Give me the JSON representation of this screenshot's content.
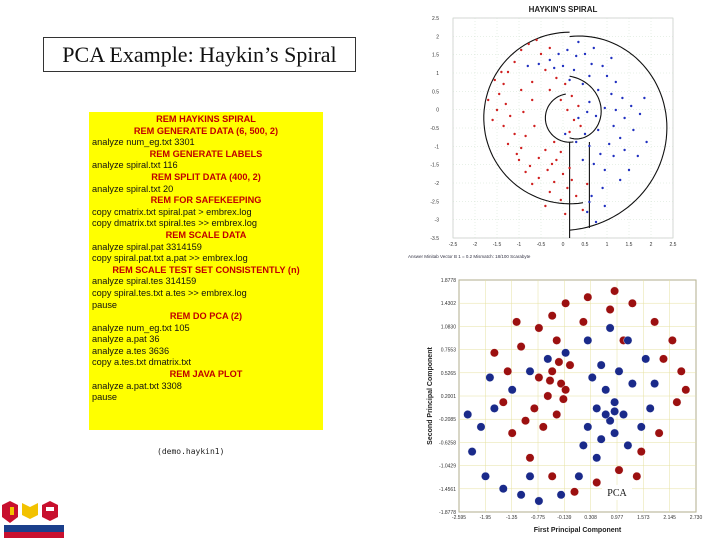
{
  "slide": {
    "title": "PCA Example: Haykin’s Spiral",
    "caption": "(demo.haykin1)"
  },
  "code_lines": [
    {
      "text": "REM HAYKINS SPIRAL",
      "rem": true
    },
    {
      "text": "REM GENERATE DATA (6, 500, 2)",
      "rem": true
    },
    {
      "text": "analyze num_eg.txt 3301",
      "rem": false
    },
    {
      "text": "REM GENERATE LABELS",
      "rem": true
    },
    {
      "text": "analyze spiral.txt 116",
      "rem": false
    },
    {
      "text": "REM SPLIT DATA (400, 2)",
      "rem": true
    },
    {
      "text": "analyze spiral.txt 20",
      "rem": false
    },
    {
      "text": "REM FOR SAFEKEEPING",
      "rem": true
    },
    {
      "text": "copy cmatrix.txt spiral.pat > embrex.log",
      "rem": false
    },
    {
      "text": "copy dmatrix.txt spiral.tes >> embrex.log",
      "rem": false
    },
    {
      "text": "REM SCALE DATA",
      "rem": true
    },
    {
      "text": "analyze spiral.pat 3314159",
      "rem": false
    },
    {
      "text": "copy spiral.pat.txt a.pat >> embrex.log",
      "rem": false
    },
    {
      "text": "REM SCALE TEST SET CONSISTENTLY (n)",
      "rem": true
    },
    {
      "text": "analyze spiral.tes 314159",
      "rem": false
    },
    {
      "text": "copy spiral.tes.txt a.tes >> embrex.log",
      "rem": false
    },
    {
      "text": "pause",
      "rem": false
    },
    {
      "text": "REM DO PCA (2)",
      "rem": true
    },
    {
      "text": "analyze num_eg.txt 105",
      "rem": false
    },
    {
      "text": "analyze a.pat 36",
      "rem": false
    },
    {
      "text": "analyze a.tes 3636",
      "rem": false
    },
    {
      "text": "copy a.tes.txt dmatrix.txt",
      "rem": false
    },
    {
      "text": "REM JAVA PLOT",
      "rem": true
    },
    {
      "text": "analyze a.pat.txt 3308",
      "rem": false
    },
    {
      "text": "pause",
      "rem": false
    }
  ],
  "chart_data": [
    {
      "type": "scatter",
      "title": "HAYKIN'S SPIRAL",
      "xlabel": "",
      "ylabel": "",
      "xlim": [
        -2.5,
        2.5
      ],
      "ylim": [
        -3.0,
        2.5
      ],
      "x_ticks": [
        "-2.5",
        "-2",
        "-1.5",
        "-1",
        "-0.5",
        "0",
        "0.5",
        "1",
        "1.5",
        "2",
        "2.5"
      ],
      "y_ticks": [
        "2.5",
        "2",
        "1.5",
        "1",
        "0.5",
        "0",
        "-0.5",
        "-1",
        "-1.5",
        "-2",
        "-2.5",
        "-3",
        "-3.5"
      ],
      "grid": true,
      "series": [
        {
          "color": "#d02020",
          "points": [
            [
              -0.95,
              1.7
            ],
            [
              -0.78,
              1.85
            ],
            [
              -0.5,
              1.6
            ],
            [
              -1.1,
              1.4
            ],
            [
              -1.25,
              1.15
            ],
            [
              -1.35,
              0.85
            ],
            [
              -1.55,
              0.95
            ],
            [
              -1.45,
              0.6
            ],
            [
              -1.3,
              0.35
            ],
            [
              -1.5,
              0.2
            ],
            [
              -1.2,
              0.05
            ],
            [
              -1.35,
              -0.2
            ],
            [
              -1.1,
              -0.4
            ],
            [
              -1.25,
              -0.65
            ],
            [
              -0.95,
              -0.75
            ],
            [
              -1.0,
              -1.05
            ],
            [
              -0.75,
              -1.2
            ],
            [
              -0.55,
              -1.0
            ],
            [
              -0.35,
              -1.3
            ],
            [
              -0.15,
              -1.05
            ],
            [
              0.0,
              -1.4
            ],
            [
              -0.2,
              -1.6
            ],
            [
              0.1,
              -1.75
            ],
            [
              -0.05,
              -2.05
            ],
            [
              0.2,
              -1.55
            ],
            [
              0.3,
              -1.95
            ],
            [
              -0.3,
              -1.85
            ],
            [
              -0.55,
              -1.5
            ],
            [
              -0.85,
              -0.45
            ],
            [
              -0.65,
              -0.2
            ],
            [
              -0.9,
              0.15
            ],
            [
              -0.7,
              0.45
            ],
            [
              -0.95,
              0.7
            ],
            [
              -0.7,
              0.9
            ],
            [
              -0.4,
              1.2
            ],
            [
              -0.15,
              1.0
            ],
            [
              -0.3,
              0.7
            ],
            [
              0.05,
              0.85
            ],
            [
              -0.05,
              0.45
            ],
            [
              0.2,
              0.55
            ],
            [
              0.1,
              0.2
            ],
            [
              0.35,
              0.3
            ],
            [
              0.25,
              -0.05
            ],
            [
              0.4,
              -0.2
            ],
            [
              0.15,
              -0.35
            ],
            [
              -0.2,
              -0.6
            ],
            [
              -0.4,
              -0.8
            ],
            [
              -1.6,
              -0.05
            ],
            [
              -1.4,
              1.15
            ],
            [
              -0.6,
              1.95
            ],
            [
              -0.3,
              1.75
            ],
            [
              0.05,
              -2.4
            ],
            [
              -0.4,
              -2.2
            ],
            [
              0.45,
              -2.3
            ],
            [
              -1.05,
              -0.9
            ],
            [
              -0.05,
              -0.85
            ],
            [
              -1.7,
              0.45
            ],
            [
              0.15,
              -1.25
            ],
            [
              -0.25,
              -1.15
            ],
            [
              0.55,
              -1.65
            ],
            [
              -0.7,
              -1.65
            ],
            [
              -0.85,
              -1.35
            ]
          ]
        },
        {
          "color": "#2030c0",
          "points": [
            [
              -0.8,
              1.3
            ],
            [
              -0.55,
              1.35
            ],
            [
              -0.3,
              1.45
            ],
            [
              -0.1,
              1.6
            ],
            [
              0.1,
              1.7
            ],
            [
              0.3,
              1.55
            ],
            [
              0.5,
              1.6
            ],
            [
              0.65,
              1.35
            ],
            [
              0.9,
              1.3
            ],
            [
              1.0,
              1.05
            ],
            [
              1.2,
              0.9
            ],
            [
              1.1,
              0.6
            ],
            [
              1.35,
              0.5
            ],
            [
              1.2,
              0.2
            ],
            [
              1.4,
              0.0
            ],
            [
              1.15,
              -0.2
            ],
            [
              1.3,
              -0.5
            ],
            [
              1.05,
              -0.65
            ],
            [
              1.15,
              -0.95
            ],
            [
              0.85,
              -0.9
            ],
            [
              0.7,
              -1.15
            ],
            [
              0.6,
              -0.7
            ],
            [
              0.5,
              -0.4
            ],
            [
              0.8,
              -0.3
            ],
            [
              0.75,
              0.05
            ],
            [
              0.95,
              0.25
            ],
            [
              0.6,
              0.4
            ],
            [
              0.8,
              0.7
            ],
            [
              0.45,
              0.85
            ],
            [
              0.6,
              1.05
            ],
            [
              0.25,
              1.2
            ],
            [
              0.0,
              1.3
            ],
            [
              0.35,
              1.9
            ],
            [
              0.7,
              1.75
            ],
            [
              1.1,
              1.5
            ],
            [
              1.55,
              0.3
            ],
            [
              1.6,
              -0.3
            ],
            [
              1.4,
              -0.8
            ],
            [
              0.95,
              -1.3
            ],
            [
              0.45,
              -1.05
            ],
            [
              0.3,
              -0.6
            ],
            [
              0.05,
              -0.4
            ],
            [
              0.35,
              0.0
            ],
            [
              0.55,
              0.15
            ],
            [
              0.15,
              0.95
            ],
            [
              -0.2,
              1.25
            ],
            [
              1.7,
              -0.95
            ],
            [
              1.9,
              -0.6
            ],
            [
              1.5,
              -1.3
            ],
            [
              1.3,
              -1.55
            ],
            [
              0.9,
              -1.75
            ],
            [
              0.65,
              -1.95
            ],
            [
              0.55,
              -2.35
            ],
            [
              0.75,
              -2.6
            ],
            [
              0.6,
              -2.1
            ],
            [
              0.95,
              -2.2
            ],
            [
              1.75,
              0.1
            ],
            [
              1.85,
              0.5
            ]
          ]
        }
      ]
    },
    {
      "type": "scatter",
      "title": "",
      "xlabel": "First Principal Component",
      "ylabel": "Second Principal Component",
      "x_ticks": [
        "-2.595",
        "-1.95",
        "-1.35",
        "-0.775",
        "-0.139",
        "0.308",
        "0.977",
        "1.573",
        "2.145",
        "2.730"
      ],
      "y_ticks": [
        "1.8778",
        "1.4302",
        "1.0830",
        "0.7553",
        "0.5265",
        "0.2001",
        "-0.2085",
        "-0.6258",
        "-1.0429",
        "-1.4561",
        "-1.8778"
      ],
      "xlim": [
        -2.595,
        2.73
      ],
      "ylim": [
        -1.8778,
        1.8778
      ],
      "grid": true,
      "annotation": "PCA",
      "series": [
        {
          "color": "#9c1010",
          "points": [
            [
              -0.5,
              1.3
            ],
            [
              -0.2,
              1.5
            ],
            [
              0.3,
              1.6
            ],
            [
              0.8,
              1.4
            ],
            [
              1.3,
              1.5
            ],
            [
              1.8,
              1.2
            ],
            [
              2.2,
              0.9
            ],
            [
              2.4,
              0.4
            ],
            [
              2.3,
              -0.1
            ],
            [
              1.9,
              -0.6
            ],
            [
              1.5,
              -0.9
            ],
            [
              1.0,
              -1.2
            ],
            [
              0.5,
              -1.4
            ],
            [
              0.0,
              -1.55
            ],
            [
              -0.5,
              -1.3
            ],
            [
              -1.0,
              -1.0
            ],
            [
              -1.4,
              -0.6
            ],
            [
              -1.6,
              -0.1
            ],
            [
              -1.5,
              0.4
            ],
            [
              -1.2,
              0.8
            ],
            [
              -0.8,
              1.1
            ],
            [
              -0.4,
              0.9
            ],
            [
              -0.1,
              0.5
            ],
            [
              -0.3,
              0.2
            ],
            [
              -0.6,
              0.0
            ],
            [
              -0.9,
              -0.2
            ],
            [
              -1.1,
              -0.4
            ],
            [
              -0.7,
              -0.5
            ],
            [
              -0.4,
              -0.3
            ],
            [
              -0.2,
              0.1
            ],
            [
              -0.5,
              0.4
            ],
            [
              -0.8,
              0.3
            ],
            [
              0.9,
              1.7
            ],
            [
              2.5,
              0.1
            ],
            [
              1.4,
              -1.3
            ],
            [
              -1.8,
              0.7
            ],
            [
              -1.3,
              1.2
            ],
            [
              0.2,
              1.2
            ],
            [
              1.1,
              0.9
            ],
            [
              2.0,
              0.6
            ],
            [
              -0.35,
              0.55
            ],
            [
              -0.55,
              0.25
            ],
            [
              -0.25,
              -0.05
            ]
          ]
        },
        {
          "color": "#1a2a8a",
          "points": [
            [
              0.4,
              0.3
            ],
            [
              0.7,
              0.1
            ],
            [
              0.9,
              -0.1
            ],
            [
              1.1,
              -0.3
            ],
            [
              0.8,
              -0.4
            ],
            [
              0.5,
              -0.2
            ],
            [
              0.3,
              -0.5
            ],
            [
              0.6,
              -0.7
            ],
            [
              0.9,
              -0.6
            ],
            [
              1.2,
              -0.8
            ],
            [
              1.5,
              -0.5
            ],
            [
              1.7,
              -0.2
            ],
            [
              1.8,
              0.2
            ],
            [
              1.6,
              0.6
            ],
            [
              1.2,
              0.9
            ],
            [
              0.8,
              1.1
            ],
            [
              0.3,
              0.9
            ],
            [
              -0.2,
              0.7
            ],
            [
              -0.6,
              0.6
            ],
            [
              -1.0,
              0.4
            ],
            [
              -1.4,
              0.1
            ],
            [
              -1.8,
              -0.2
            ],
            [
              -2.1,
              -0.5
            ],
            [
              -2.3,
              -0.9
            ],
            [
              -2.0,
              -1.3
            ],
            [
              -1.6,
              -1.5
            ],
            [
              -1.2,
              -1.6
            ],
            [
              -0.8,
              -1.7
            ],
            [
              -0.3,
              -1.6
            ],
            [
              0.1,
              -1.3
            ],
            [
              0.5,
              -1.0
            ],
            [
              1.3,
              0.2
            ],
            [
              -1.9,
              0.3
            ],
            [
              -2.4,
              -0.3
            ],
            [
              -1.0,
              -1.3
            ],
            [
              0.2,
              -0.8
            ],
            [
              0.6,
              0.5
            ],
            [
              1.0,
              0.4
            ],
            [
              0.7,
              -0.3
            ],
            [
              0.9,
              -0.25
            ]
          ]
        }
      ]
    }
  ],
  "plot1": {
    "tiny_caption": "Answer Minitab  Vector B 1 = 0.2  Mismatch: 18/100  Scarabyte"
  }
}
